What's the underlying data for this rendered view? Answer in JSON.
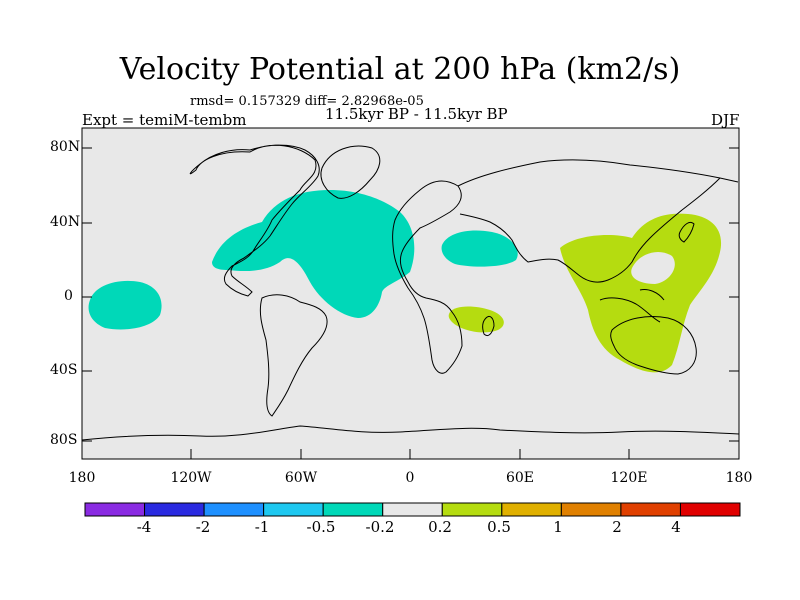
{
  "title": "Velocity Potential at 200 hPa (km2/s)",
  "stats_line": "rmsd= 0.157329 diff= 2.82968e-05",
  "experiment": "Expt = temiM-tembm",
  "period": "11.5kyr BP - 11.5kyr BP",
  "season": "DJF",
  "lat_labels": [
    "80N",
    "40N",
    "0",
    "40S",
    "80S"
  ],
  "lon_labels": [
    "180",
    "120W",
    "60W",
    "0",
    "60E",
    "120E",
    "180"
  ],
  "colorbar": {
    "colors": [
      "#8a2be2",
      "#2a2ae0",
      "#1e90ff",
      "#1ec8f0",
      "#00d8b8",
      "#e8e8e8",
      "#b5dc10",
      "#e0b000",
      "#e08000",
      "#e04000",
      "#e00000"
    ],
    "labels": [
      "-4",
      "-2",
      "-1",
      "-0.5",
      "-0.2",
      "0.2",
      "0.5",
      "1",
      "2",
      "4"
    ]
  },
  "colors": {
    "ocean_land": "#e8e8e8",
    "negative_fill": "#00d8b8",
    "positive_fill": "#b5dc10"
  }
}
